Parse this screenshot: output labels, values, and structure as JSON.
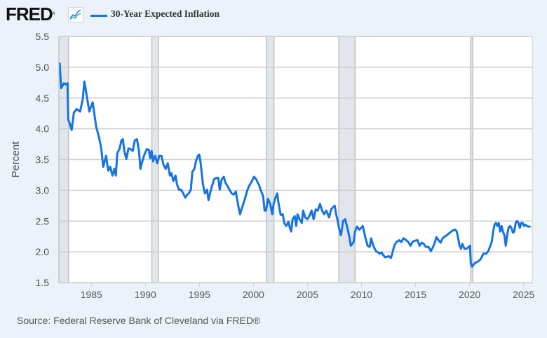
{
  "header": {
    "logo_text": "FRED",
    "logo_reg": "®",
    "graph_icon": "line-chart-icon"
  },
  "source": "Source: Federal Reserve Bank of Cleveland via FRED®",
  "chart_data": {
    "type": "line",
    "title": "",
    "xlabel": "",
    "ylabel": "Percent",
    "xlim": [
      1982.0,
      2025.8
    ],
    "ylim": [
      1.5,
      5.5
    ],
    "grid": true,
    "legend": "top-left",
    "colors": {
      "line": "#1573e3",
      "recession": "#e1e6ec",
      "grid": "#c8c8c8",
      "plot_bg": "#ffffff",
      "page_bg": "#ebf2fa"
    },
    "yticks": [
      "1.5",
      "2.0",
      "2.5",
      "3.0",
      "3.5",
      "4.0",
      "4.5",
      "5.0",
      "5.5"
    ],
    "xticks": [
      "1985",
      "1990",
      "1995",
      "2000",
      "2005",
      "2010",
      "2015",
      "2020",
      "2025"
    ],
    "recessions": [
      [
        1982.0,
        1982.9
      ],
      [
        1990.6,
        1991.2
      ],
      [
        2001.2,
        2001.9
      ],
      [
        2007.9,
        2009.4
      ],
      [
        2020.1,
        2020.3
      ]
    ],
    "series": [
      {
        "name": "30-Year Expected Inflation",
        "x": [
          1982.08,
          1982.21,
          1982.47,
          1982.66,
          1982.79,
          1982.86,
          1982.99,
          1983.18,
          1983.38,
          1983.64,
          1983.96,
          1984.22,
          1984.35,
          1984.48,
          1984.81,
          1985.13,
          1985.45,
          1985.71,
          1985.91,
          1986.1,
          1986.36,
          1986.56,
          1986.75,
          1986.95,
          1987.14,
          1987.27,
          1987.4,
          1987.6,
          1987.79,
          1987.92,
          1988.05,
          1988.24,
          1988.44,
          1988.63,
          1988.83,
          1989.02,
          1989.22,
          1989.41,
          1989.54,
          1989.67,
          1989.87,
          1990.13,
          1990.32,
          1990.45,
          1990.58,
          1990.71,
          1990.91,
          1991.1,
          1991.29,
          1991.49,
          1991.68,
          1991.88,
          1992.07,
          1992.27,
          1992.4,
          1992.59,
          1992.79,
          1992.92,
          1993.11,
          1993.31,
          1993.5,
          1993.7,
          1993.83,
          1994.02,
          1994.21,
          1994.34,
          1994.54,
          1994.67,
          1994.86,
          1994.99,
          1995.12,
          1995.32,
          1995.51,
          1995.71,
          1995.84,
          1996.1,
          1996.36,
          1996.55,
          1996.75,
          1996.88,
          1997.07,
          1997.26,
          1997.39,
          1997.59,
          1997.78,
          1997.98,
          1998.17,
          1998.37,
          1998.56,
          1998.76,
          1998.95,
          1999.21,
          1999.41,
          1999.6,
          1999.86,
          2000.06,
          2000.25,
          2000.38,
          2000.51,
          2000.7,
          2000.9,
          2001.03,
          2001.16,
          2001.35,
          2001.55,
          2001.74,
          2001.87,
          2002.0,
          2002.2,
          2002.33,
          2002.52,
          2002.72,
          2002.85,
          2003.04,
          2003.24,
          2003.37,
          2003.49,
          2003.62,
          2003.82,
          2003.95,
          2004.08,
          2004.27,
          2004.47,
          2004.6,
          2004.79,
          2004.99,
          2005.18,
          2005.38,
          2005.57,
          2005.77,
          2005.96,
          2006.16,
          2006.35,
          2006.54,
          2006.74,
          2007.0,
          2007.19,
          2007.39,
          2007.52,
          2007.65,
          2007.78,
          2007.91,
          2008.1,
          2008.3,
          2008.49,
          2008.69,
          2008.88,
          2009.01,
          2009.14,
          2009.27,
          2009.4,
          2009.59,
          2009.79,
          2009.98,
          2010.11,
          2010.24,
          2010.37,
          2010.57,
          2010.76,
          2010.89,
          2011.09,
          2011.22,
          2011.35,
          2011.54,
          2011.67,
          2011.87,
          2012.0,
          2012.19,
          2012.39,
          2012.52,
          2012.71,
          2012.84,
          2013.03,
          2013.23,
          2013.49,
          2013.68,
          2013.88,
          2014.14,
          2014.33,
          2014.53,
          2014.72,
          2014.92,
          2015.18,
          2015.37,
          2015.56,
          2015.76,
          2015.95,
          2016.21,
          2016.41,
          2016.6,
          2016.8,
          2016.93,
          2017.12,
          2017.32,
          2017.51,
          2017.71,
          2017.9,
          2018.1,
          2018.29,
          2018.48,
          2018.68,
          2018.81,
          2018.94,
          2019.07,
          2019.2,
          2019.33,
          2019.52,
          2019.72,
          2019.91,
          2020.04,
          2020.11,
          2020.24,
          2020.5,
          2020.76,
          2021.02,
          2021.28,
          2021.53,
          2021.73,
          2021.92,
          2022.05,
          2022.18,
          2022.31,
          2022.44,
          2022.57,
          2022.7,
          2022.83,
          2022.96,
          2023.09,
          2023.22,
          2023.35,
          2023.48,
          2023.61,
          2023.74,
          2023.87,
          2024.0,
          2024.13,
          2024.26,
          2024.39,
          2024.52,
          2024.65,
          2024.78,
          2024.91,
          2025.04,
          2025.17,
          2025.3,
          2025.43,
          2025.56
        ],
        "values": [
          5.06,
          4.66,
          4.74,
          4.72,
          4.74,
          4.15,
          4.09,
          3.98,
          4.26,
          4.32,
          4.28,
          4.49,
          4.77,
          4.64,
          4.28,
          4.43,
          4.03,
          3.86,
          3.69,
          3.38,
          3.56,
          3.32,
          3.38,
          3.24,
          3.35,
          3.24,
          3.6,
          3.67,
          3.81,
          3.83,
          3.64,
          3.51,
          3.68,
          3.67,
          3.64,
          3.81,
          3.83,
          3.64,
          3.35,
          3.44,
          3.56,
          3.67,
          3.66,
          3.52,
          3.64,
          3.47,
          3.56,
          3.44,
          3.56,
          3.56,
          3.41,
          3.35,
          3.44,
          3.24,
          3.28,
          3.15,
          3.24,
          3.1,
          3.01,
          3.01,
          2.95,
          2.88,
          2.92,
          2.95,
          3.01,
          3.3,
          3.35,
          3.47,
          3.56,
          3.58,
          3.44,
          3.1,
          2.95,
          3.01,
          2.84,
          3.03,
          3.18,
          3.2,
          3.2,
          3.01,
          3.18,
          3.22,
          3.13,
          3.07,
          3.01,
          2.95,
          2.93,
          2.98,
          2.78,
          2.61,
          2.72,
          2.86,
          2.99,
          3.07,
          3.15,
          3.22,
          3.18,
          3.13,
          3.09,
          2.99,
          2.9,
          2.67,
          2.67,
          2.86,
          2.78,
          2.61,
          2.78,
          2.86,
          2.95,
          2.78,
          2.6,
          2.61,
          2.47,
          2.42,
          2.49,
          2.39,
          2.33,
          2.53,
          2.58,
          2.42,
          2.61,
          2.53,
          2.47,
          2.67,
          2.56,
          2.53,
          2.58,
          2.67,
          2.53,
          2.69,
          2.67,
          2.78,
          2.67,
          2.61,
          2.67,
          2.56,
          2.69,
          2.73,
          2.75,
          2.61,
          2.52,
          2.39,
          2.27,
          2.5,
          2.53,
          2.39,
          2.24,
          2.1,
          2.13,
          2.16,
          2.33,
          2.41,
          2.36,
          2.39,
          2.42,
          2.33,
          2.22,
          2.1,
          2.08,
          2.22,
          2.1,
          2.05,
          2.01,
          1.99,
          1.97,
          1.99,
          1.95,
          1.91,
          1.92,
          1.93,
          1.9,
          1.97,
          2.1,
          2.16,
          2.19,
          2.16,
          2.22,
          2.19,
          2.16,
          2.1,
          2.16,
          2.18,
          2.19,
          2.1,
          2.15,
          2.13,
          2.08,
          2.08,
          2.01,
          2.07,
          2.16,
          2.24,
          2.19,
          2.15,
          2.22,
          2.25,
          2.27,
          2.3,
          2.33,
          2.35,
          2.36,
          2.33,
          2.22,
          2.1,
          2.05,
          2.13,
          2.05,
          2.05,
          2.08,
          2.1,
          1.82,
          1.76,
          1.82,
          1.84,
          1.88,
          1.97,
          1.97,
          2.01,
          2.1,
          2.16,
          2.33,
          2.44,
          2.47,
          2.42,
          2.47,
          2.33,
          2.42,
          2.33,
          2.27,
          2.1,
          2.27,
          2.39,
          2.42,
          2.39,
          2.31,
          2.33,
          2.47,
          2.5,
          2.47,
          2.39,
          2.47,
          2.47,
          2.42,
          2.44,
          2.42,
          2.41,
          2.41
        ]
      }
    ]
  }
}
